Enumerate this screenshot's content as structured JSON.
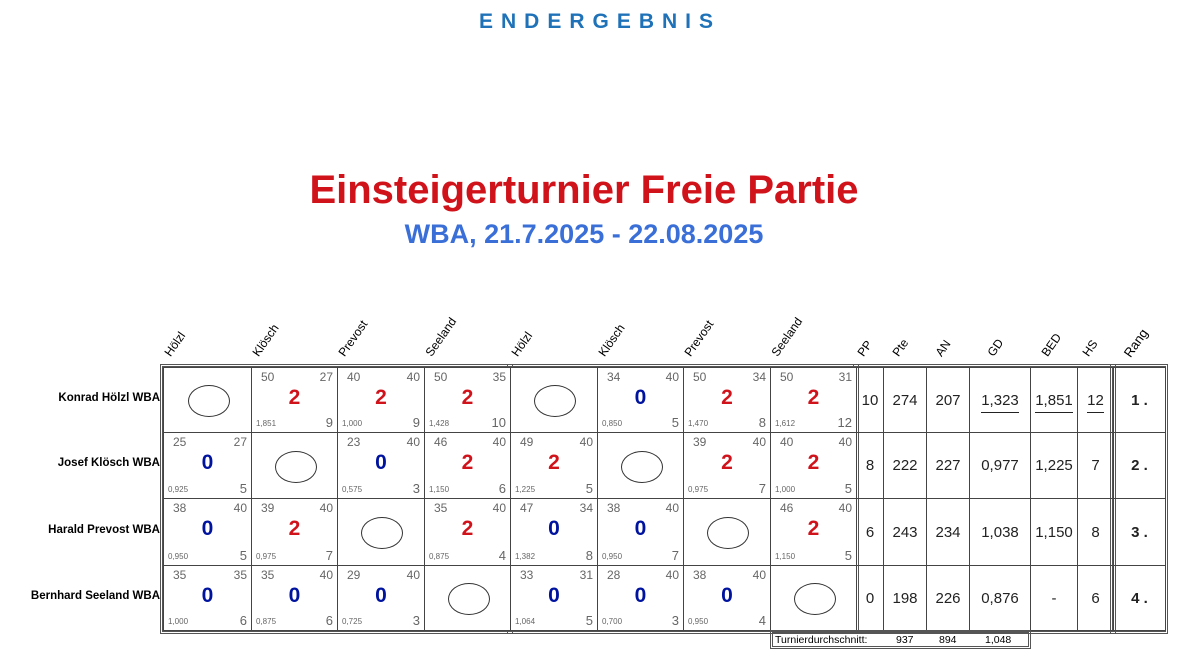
{
  "header": "ENDERGEBNIS",
  "title": "Einsteigerturnier Freie Partie",
  "subtitle": "WBA, 21.7.2025 - 22.08.2025",
  "colors": {
    "win": "#d0121b",
    "loss": "#00139e",
    "title": "#d0121b",
    "subtitle": "#3a6fd8",
    "header": "#1f72b8"
  },
  "columns": {
    "opponents": [
      "Hölzl",
      "Klösch",
      "Prevost",
      "Seeland",
      "Hölzl",
      "Klösch",
      "Prevost",
      "Seeland"
    ],
    "stats": [
      "PP",
      "Pte",
      "AN",
      "GD",
      "BED",
      "HS"
    ],
    "rank": "Rang"
  },
  "players": [
    {
      "name": "Konrad Hölzl WBA",
      "cells": [
        null,
        [
          "50",
          "27",
          "2",
          "1,851",
          "9"
        ],
        [
          "40",
          "40",
          "2",
          "1,000",
          "9"
        ],
        [
          "50",
          "35",
          "2",
          "1,428",
          "10"
        ],
        null,
        [
          "34",
          "40",
          "0",
          "0,850",
          "5"
        ],
        [
          "50",
          "34",
          "2",
          "1,470",
          "8"
        ],
        [
          "50",
          "31",
          "2",
          "1,612",
          "12"
        ]
      ],
      "stats": [
        "10",
        "274",
        "207",
        "1,323",
        "1,851",
        "12"
      ],
      "underlined": [
        false,
        false,
        false,
        true,
        true,
        true
      ],
      "rank": "1 ."
    },
    {
      "name": "Josef Klösch WBA",
      "cells": [
        [
          "25",
          "27",
          "0",
          "0,925",
          "5"
        ],
        null,
        [
          "23",
          "40",
          "0",
          "0,575",
          "3"
        ],
        [
          "46",
          "40",
          "2",
          "1,150",
          "6"
        ],
        [
          "49",
          "40",
          "2",
          "1,225",
          "5"
        ],
        null,
        [
          "39",
          "40",
          "2",
          "0,975",
          "7"
        ],
        [
          "40",
          "40",
          "2",
          "1,000",
          "5"
        ]
      ],
      "stats": [
        "8",
        "222",
        "227",
        "0,977",
        "1,225",
        "7"
      ],
      "underlined": [
        false,
        false,
        false,
        false,
        false,
        false
      ],
      "rank": "2 ."
    },
    {
      "name": "Harald Prevost WBA",
      "cells": [
        [
          "38",
          "40",
          "0",
          "0,950",
          "5"
        ],
        [
          "39",
          "40",
          "2",
          "0,975",
          "7"
        ],
        null,
        [
          "35",
          "40",
          "2",
          "0,875",
          "4"
        ],
        [
          "47",
          "34",
          "0",
          "1,382",
          "8"
        ],
        [
          "38",
          "40",
          "0",
          "0,950",
          "7"
        ],
        null,
        [
          "46",
          "40",
          "2",
          "1,150",
          "5"
        ]
      ],
      "stats": [
        "6",
        "243",
        "234",
        "1,038",
        "1,150",
        "8"
      ],
      "underlined": [
        false,
        false,
        false,
        false,
        false,
        false
      ],
      "rank": "3 ."
    },
    {
      "name": "Bernhard Seeland WBA",
      "cells": [
        [
          "35",
          "35",
          "0",
          "1,000",
          "6"
        ],
        [
          "35",
          "40",
          "0",
          "0,875",
          "6"
        ],
        [
          "29",
          "40",
          "0",
          "0,725",
          "3"
        ],
        null,
        [
          "33",
          "31",
          "0",
          "1,064",
          "5"
        ],
        [
          "28",
          "40",
          "0",
          "0,700",
          "3"
        ],
        [
          "38",
          "40",
          "0",
          "0,950",
          "4"
        ],
        null
      ],
      "stats": [
        "0",
        "198",
        "226",
        "0,876",
        "-",
        "6"
      ],
      "underlined": [
        false,
        false,
        false,
        false,
        false,
        false
      ],
      "rank": "4 ."
    }
  ],
  "footer": {
    "label": "Turnierdurchschnitt:",
    "pte": "937",
    "an": "894",
    "gd": "1,048"
  }
}
